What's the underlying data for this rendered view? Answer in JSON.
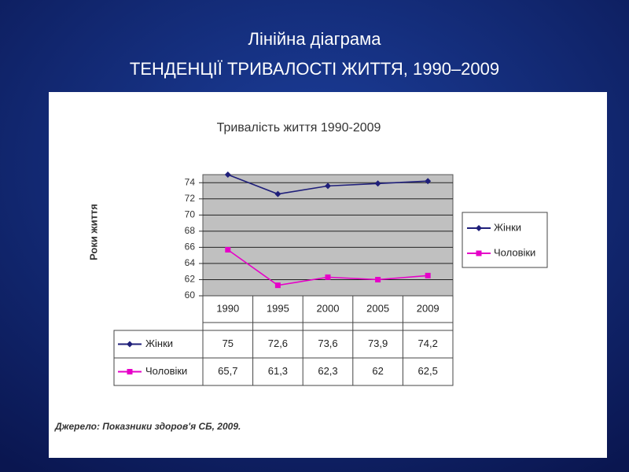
{
  "slide_title": [
    "Лінійна діаграма",
    "ТЕНДЕНЦІЇ ТРИВАЛОСТІ ЖИТТЯ, 1990–2009"
  ],
  "chart_data": {
    "type": "line",
    "title": "Тривалість життя 1990-2009",
    "y_label": "Роки життя",
    "categories": [
      "1990",
      "1995",
      "2000",
      "2005",
      "2009"
    ],
    "series": [
      {
        "name": "Жінки",
        "color": "#1f1f7a",
        "marker": "diamond",
        "values": [
          75,
          72.6,
          73.6,
          73.9,
          74.2
        ],
        "value_labels": [
          "75",
          "72,6",
          "73,6",
          "73,9",
          "74,2"
        ]
      },
      {
        "name": "Чоловіки",
        "color": "#e600c8",
        "marker": "square",
        "values": [
          65.7,
          61.3,
          62.3,
          62,
          62.5
        ],
        "value_labels": [
          "65,7",
          "61,3",
          "62,3",
          "62",
          "62,5"
        ]
      }
    ],
    "ylim": [
      60,
      75
    ],
    "yticks": [
      60,
      62,
      64,
      66,
      68,
      70,
      72,
      74
    ],
    "grid": true,
    "legend": "right",
    "source": "Джерело: Показники здоров'я СБ, 2009."
  }
}
